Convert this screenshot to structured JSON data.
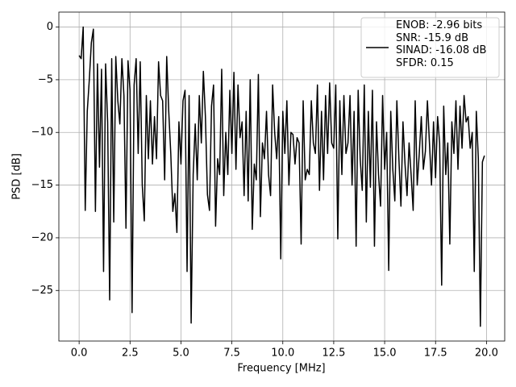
{
  "chart_data": {
    "type": "line",
    "xlabel": "Frequency [MHz]",
    "ylabel": "PSD [dB]",
    "xlim": [
      -0.995,
      20.895
    ],
    "ylim": [
      -29.8,
      1.42
    ],
    "xticks": [
      {
        "value": 0,
        "label": "0.0"
      },
      2.5,
      {
        "value": 5,
        "label": "5.0"
      },
      7.5,
      {
        "value": 10,
        "label": "10.0"
      },
      12.5,
      {
        "value": 15,
        "label": "15.0"
      },
      17.5,
      {
        "value": 20,
        "label": "20.0"
      }
    ],
    "yticks": [
      {
        "value": 0,
        "label": "0"
      },
      {
        "value": -5,
        "label": "−5"
      },
      {
        "value": -10,
        "label": "−10"
      },
      {
        "value": -15,
        "label": "−15"
      },
      {
        "value": -20,
        "label": "−20"
      },
      {
        "value": -25,
        "label": "−25"
      }
    ],
    "grid": true,
    "legend": "upper right",
    "x": [
      0,
      0.1,
      0.2,
      0.3,
      0.4,
      0.5,
      0.6,
      0.7,
      0.8,
      0.9,
      1,
      1.1,
      1.2,
      1.3,
      1.4,
      1.5,
      1.6,
      1.7,
      1.8,
      1.9,
      2,
      2.1,
      2.2,
      2.3,
      2.4,
      2.5,
      2.6,
      2.7,
      2.8,
      2.9,
      3,
      3.1,
      3.2,
      3.3,
      3.4,
      3.5,
      3.6,
      3.7,
      3.8,
      3.9,
      4,
      4.1,
      4.2,
      4.3,
      4.4,
      4.5,
      4.6,
      4.7,
      4.8,
      4.9,
      5,
      5.1,
      5.2,
      5.3,
      5.4,
      5.5,
      5.6,
      5.7,
      5.8,
      5.9,
      6,
      6.1,
      6.2,
      6.3,
      6.4,
      6.5,
      6.6,
      6.7,
      6.8,
      6.9,
      7,
      7.1,
      7.2,
      7.3,
      7.4,
      7.5,
      7.6,
      7.7,
      7.8,
      7.9,
      8,
      8.1,
      8.2,
      8.3,
      8.4,
      8.5,
      8.6,
      8.7,
      8.8,
      8.9,
      9,
      9.1,
      9.2,
      9.3,
      9.4,
      9.5,
      9.6,
      9.7,
      9.8,
      9.9,
      10,
      10.1,
      10.2,
      10.3,
      10.4,
      10.5,
      10.6,
      10.7,
      10.8,
      10.9,
      11,
      11.1,
      11.2,
      11.3,
      11.4,
      11.5,
      11.6,
      11.7,
      11.8,
      11.9,
      12,
      12.1,
      12.2,
      12.3,
      12.4,
      12.5,
      12.6,
      12.7,
      12.8,
      12.9,
      13,
      13.1,
      13.2,
      13.3,
      13.4,
      13.5,
      13.6,
      13.7,
      13.8,
      13.9,
      14,
      14.1,
      14.2,
      14.3,
      14.4,
      14.5,
      14.6,
      14.7,
      14.8,
      14.9,
      15,
      15.1,
      15.2,
      15.3,
      15.4,
      15.5,
      15.6,
      15.7,
      15.8,
      15.9,
      16,
      16.1,
      16.2,
      16.3,
      16.4,
      16.5,
      16.6,
      16.7,
      16.8,
      16.9,
      17,
      17.1,
      17.2,
      17.3,
      17.4,
      17.5,
      17.6,
      17.7,
      17.8,
      17.9,
      18,
      18.1,
      18.2,
      18.3,
      18.4,
      18.5,
      18.6,
      18.7,
      18.8,
      18.9,
      19,
      19.1,
      19.2,
      19.3,
      19.4,
      19.5,
      19.6,
      19.7,
      19.8,
      19.9
    ],
    "series": [
      {
        "name": "ENOB: -2.96 bits\nSNR: -15.9 dB\nSINAD: -16.08 dB\nSFDR: 0.15",
        "color": "#000000",
        "values": [
          -2.7,
          -3.0,
          0,
          -17.4,
          -8,
          -5,
          -1.5,
          -0.2,
          -17.5,
          -3.5,
          -13.3,
          -4,
          -23.2,
          -3.5,
          -9,
          -25.9,
          -3,
          -18.5,
          -2.8,
          -7,
          -9.2,
          -3,
          -6.5,
          -19.1,
          -3.2,
          -6,
          -27.1,
          -5.5,
          -3,
          -12,
          -3.3,
          -15,
          -18.4,
          -6.5,
          -12.5,
          -7,
          -13,
          -8.5,
          -12.5,
          -3.3,
          -6.5,
          -7,
          -14.5,
          -2.8,
          -8,
          -12,
          -17.5,
          -15.8,
          -19.5,
          -9,
          -13,
          -7,
          -6,
          -23.2,
          -6.5,
          -28.1,
          -14,
          -9.2,
          -14.5,
          -6.5,
          -11,
          -4.2,
          -8.5,
          -15.9,
          -17.4,
          -7.5,
          -5.5,
          -18.9,
          -12.5,
          -14,
          -4,
          -16,
          -10,
          -14,
          -6,
          -12,
          -4.3,
          -13.5,
          -5.5,
          -10.5,
          -9,
          -16,
          -8,
          -16.5,
          -5,
          -19.2,
          -13,
          -14.5,
          -4.5,
          -18,
          -11,
          -12.5,
          -8,
          -14,
          -16,
          -5.5,
          -10,
          -12.5,
          -8.5,
          -22,
          -8,
          -12,
          -7,
          -15,
          -10,
          -10.2,
          -13,
          -10.5,
          -11,
          -20.6,
          -7,
          -14.5,
          -13.5,
          -14,
          -7,
          -11,
          -12,
          -5.5,
          -15.5,
          -8,
          -14.5,
          -6.5,
          -12,
          -5.3,
          -11,
          -11.5,
          -5.5,
          -20.1,
          -7,
          -14,
          -6.5,
          -12,
          -11,
          -6.5,
          -15,
          -8,
          -20.8,
          -6,
          -12.5,
          -15.5,
          -5.5,
          -18.5,
          -8,
          -15.2,
          -6,
          -20.8,
          -9,
          -14,
          -17,
          -6.5,
          -13.5,
          -10,
          -23.1,
          -8,
          -13.5,
          -16.5,
          -7,
          -12.5,
          -17,
          -9,
          -13,
          -16,
          -11,
          -14,
          -17.4,
          -7,
          -15,
          -12,
          -8.5,
          -13.5,
          -11.8,
          -7,
          -11,
          -15,
          -9,
          -14.3,
          -8.5,
          -11,
          -24.5,
          -7.5,
          -14,
          -11,
          -20.6,
          -9,
          -12,
          -7,
          -13.5,
          -7.5,
          -11.5,
          -6.5,
          -9,
          -8.5,
          -11.5,
          -10,
          -23.2,
          -8,
          -12.5,
          -28.4,
          -12.8,
          -12.2
        ]
      }
    ]
  }
}
